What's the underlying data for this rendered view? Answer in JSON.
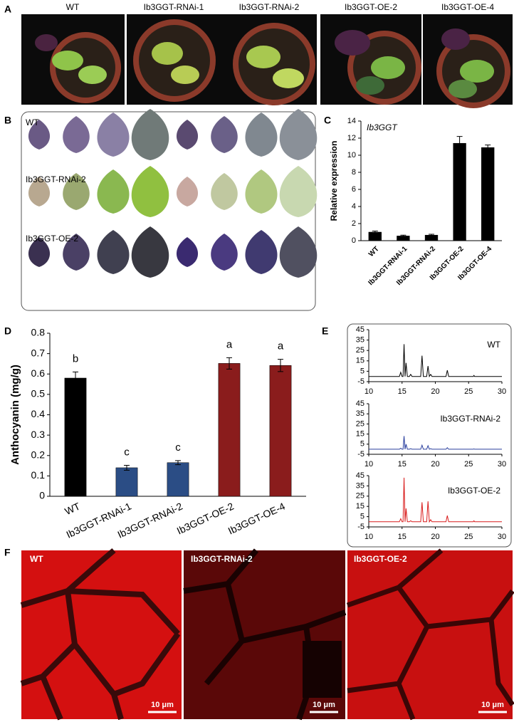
{
  "panels": {
    "A": {
      "letter": "A",
      "labels": [
        "WT",
        "Ib3GGT-RNAi-1",
        "Ib3GGT-RNAi-2",
        "Ib3GGT-OE-2",
        "Ib3GGT-OE-4"
      ]
    },
    "B": {
      "letter": "B",
      "labels": [
        "WT",
        "Ib3GGT-RNAi-2",
        "Ib3GGT-OE-2"
      ]
    },
    "C": {
      "letter": "C"
    },
    "D": {
      "letter": "D"
    },
    "E": {
      "letter": "E"
    },
    "F": {
      "letter": "F",
      "labels": [
        "WT",
        "Ib3GGT-RNAi-2",
        "Ib3GGT-OE-2"
      ],
      "scale_bars": [
        "10 μm",
        "10 μm",
        "10 μm"
      ]
    }
  },
  "chart_data": [
    {
      "type": "bar",
      "title": "Ib3GGT",
      "y_label": "Relative expression",
      "categories": [
        "WT",
        "Ib3GGT-RNAi-1",
        "Ib3GGT-RNAi-2",
        "Ib3GGT-OE-2",
        "Ib3GGT-OE-4"
      ],
      "values": [
        1.0,
        0.55,
        0.65,
        11.4,
        10.9
      ],
      "errors": [
        0.12,
        0.1,
        0.1,
        0.8,
        0.3
      ],
      "colors": [
        "#000000",
        "#000000",
        "#000000",
        "#000000",
        "#000000"
      ],
      "ylim": [
        0,
        14
      ],
      "yticks": [
        0,
        2,
        4,
        6,
        8,
        10,
        12,
        14
      ]
    },
    {
      "type": "bar",
      "y_label": "Anthocyanin (mg/g)",
      "categories": [
        "WT",
        "Ib3GGT-RNAi-1",
        "Ib3GGT-RNAi-2",
        "Ib3GGT-OE-2",
        "Ib3GGT-OE-4"
      ],
      "values": [
        0.58,
        0.14,
        0.165,
        0.652,
        0.642
      ],
      "errors": [
        0.03,
        0.012,
        0.01,
        0.028,
        0.03
      ],
      "annotations": [
        "b",
        "c",
        "c",
        "a",
        "a"
      ],
      "colors": [
        "#000000",
        "#2b4d85",
        "#2b4d85",
        "#8a1c1c",
        "#8a1c1c"
      ],
      "ylim": [
        0,
        0.8
      ],
      "yticks": [
        0,
        0.1,
        0.2,
        0.3,
        0.4,
        0.5,
        0.6,
        0.7,
        0.8
      ]
    },
    {
      "type": "line",
      "x": [
        10,
        14.6,
        14.8,
        15.0,
        15.15,
        15.3,
        15.45,
        15.6,
        15.8,
        16.1,
        16.3,
        16.5,
        17.8,
        18.0,
        18.2,
        18.7,
        18.9,
        19.1,
        19.3,
        19.5,
        21.6,
        21.8,
        22.0,
        25.7,
        25.8,
        25.9,
        30
      ],
      "series": [
        {
          "name": "WT",
          "color": "#000000",
          "values": [
            0,
            0,
            4,
            0,
            0,
            31,
            0,
            13,
            0,
            0,
            2,
            0,
            0,
            20,
            0,
            0,
            10,
            0,
            2,
            0,
            0,
            6,
            0,
            0,
            1,
            0,
            0
          ]
        }
      ],
      "xlim": [
        10,
        30
      ],
      "xticks": [
        10,
        15,
        20,
        25,
        30
      ],
      "ylim": [
        -5,
        45
      ],
      "yticks": [
        -5,
        5,
        15,
        25,
        35,
        45
      ]
    },
    {
      "type": "line",
      "x": [
        10,
        14.6,
        14.8,
        15.0,
        15.15,
        15.3,
        15.45,
        15.6,
        15.8,
        16.1,
        16.3,
        16.5,
        17.8,
        18.0,
        18.2,
        18.7,
        18.9,
        19.1,
        19.3,
        19.5,
        21.6,
        21.8,
        22.0,
        25.7,
        25.8,
        25.9,
        30
      ],
      "series": [
        {
          "name": "Ib3GGT-RNAi-2",
          "color": "#2a3f9e",
          "values": [
            0,
            0,
            1,
            0,
            0,
            13,
            0,
            5,
            0,
            0,
            0.5,
            0,
            0,
            4,
            0,
            0,
            3.5,
            0,
            0.5,
            0,
            0,
            1.5,
            0,
            0,
            0.3,
            0,
            0
          ]
        }
      ],
      "xlim": [
        10,
        30
      ],
      "xticks": [
        10,
        15,
        20,
        25,
        30
      ],
      "ylim": [
        -5,
        45
      ],
      "yticks": [
        -5,
        5,
        15,
        25,
        35,
        45
      ]
    },
    {
      "type": "line",
      "x": [
        10,
        14.6,
        14.8,
        15.0,
        15.15,
        15.3,
        15.45,
        15.6,
        15.8,
        16.1,
        16.3,
        16.5,
        17.8,
        18.0,
        18.2,
        18.7,
        18.9,
        19.1,
        19.3,
        19.5,
        21.6,
        21.8,
        22.0,
        25.7,
        25.8,
        25.9,
        30
      ],
      "series": [
        {
          "name": "Ib3GGT-OE-2",
          "color": "#d91c1c",
          "values": [
            0,
            0,
            3,
            0,
            0,
            43,
            0,
            13,
            0,
            0,
            1,
            0,
            0,
            19,
            0,
            0,
            20,
            0,
            2,
            0,
            0,
            6,
            0,
            0,
            1,
            0,
            0
          ]
        }
      ],
      "xlim": [
        10,
        30
      ],
      "xticks": [
        10,
        15,
        20,
        25,
        30
      ],
      "ylim": [
        -5,
        45
      ],
      "yticks": [
        -5,
        5,
        15,
        25,
        35,
        45
      ]
    }
  ]
}
